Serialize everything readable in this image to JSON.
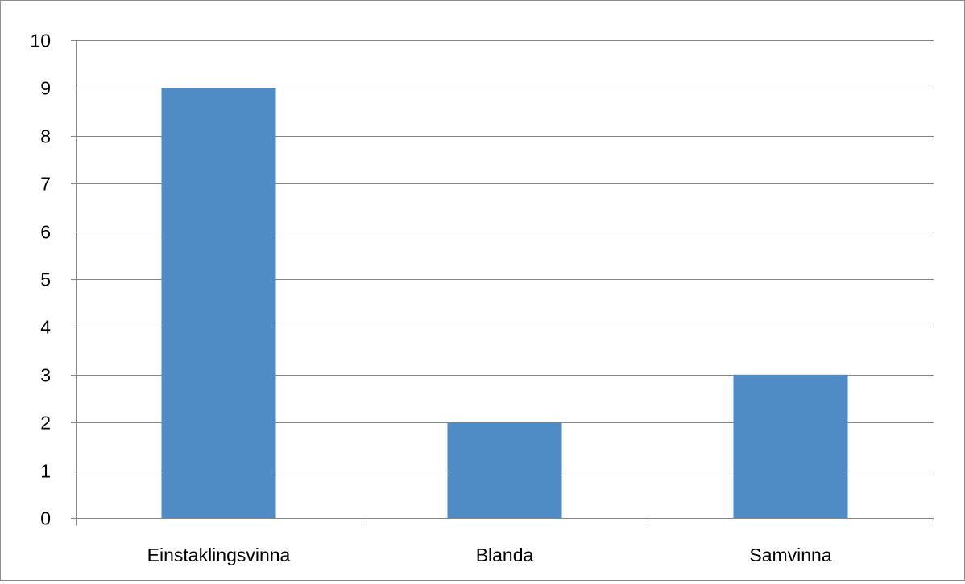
{
  "chart_data": {
    "type": "bar",
    "categories": [
      "Einstaklingsvinna",
      "Blanda",
      "Samvinna"
    ],
    "values": [
      9,
      2,
      3
    ],
    "yticks": [
      "0",
      "1",
      "2",
      "3",
      "4",
      "5",
      "6",
      "7",
      "8",
      "9",
      "10"
    ],
    "ylim": [
      0,
      10
    ],
    "grid": true,
    "legend": "none",
    "colors": {
      "bar": "#4f8bc5",
      "grid": "#868686",
      "axis": "#868686",
      "frame": "#8c8c8c"
    }
  }
}
